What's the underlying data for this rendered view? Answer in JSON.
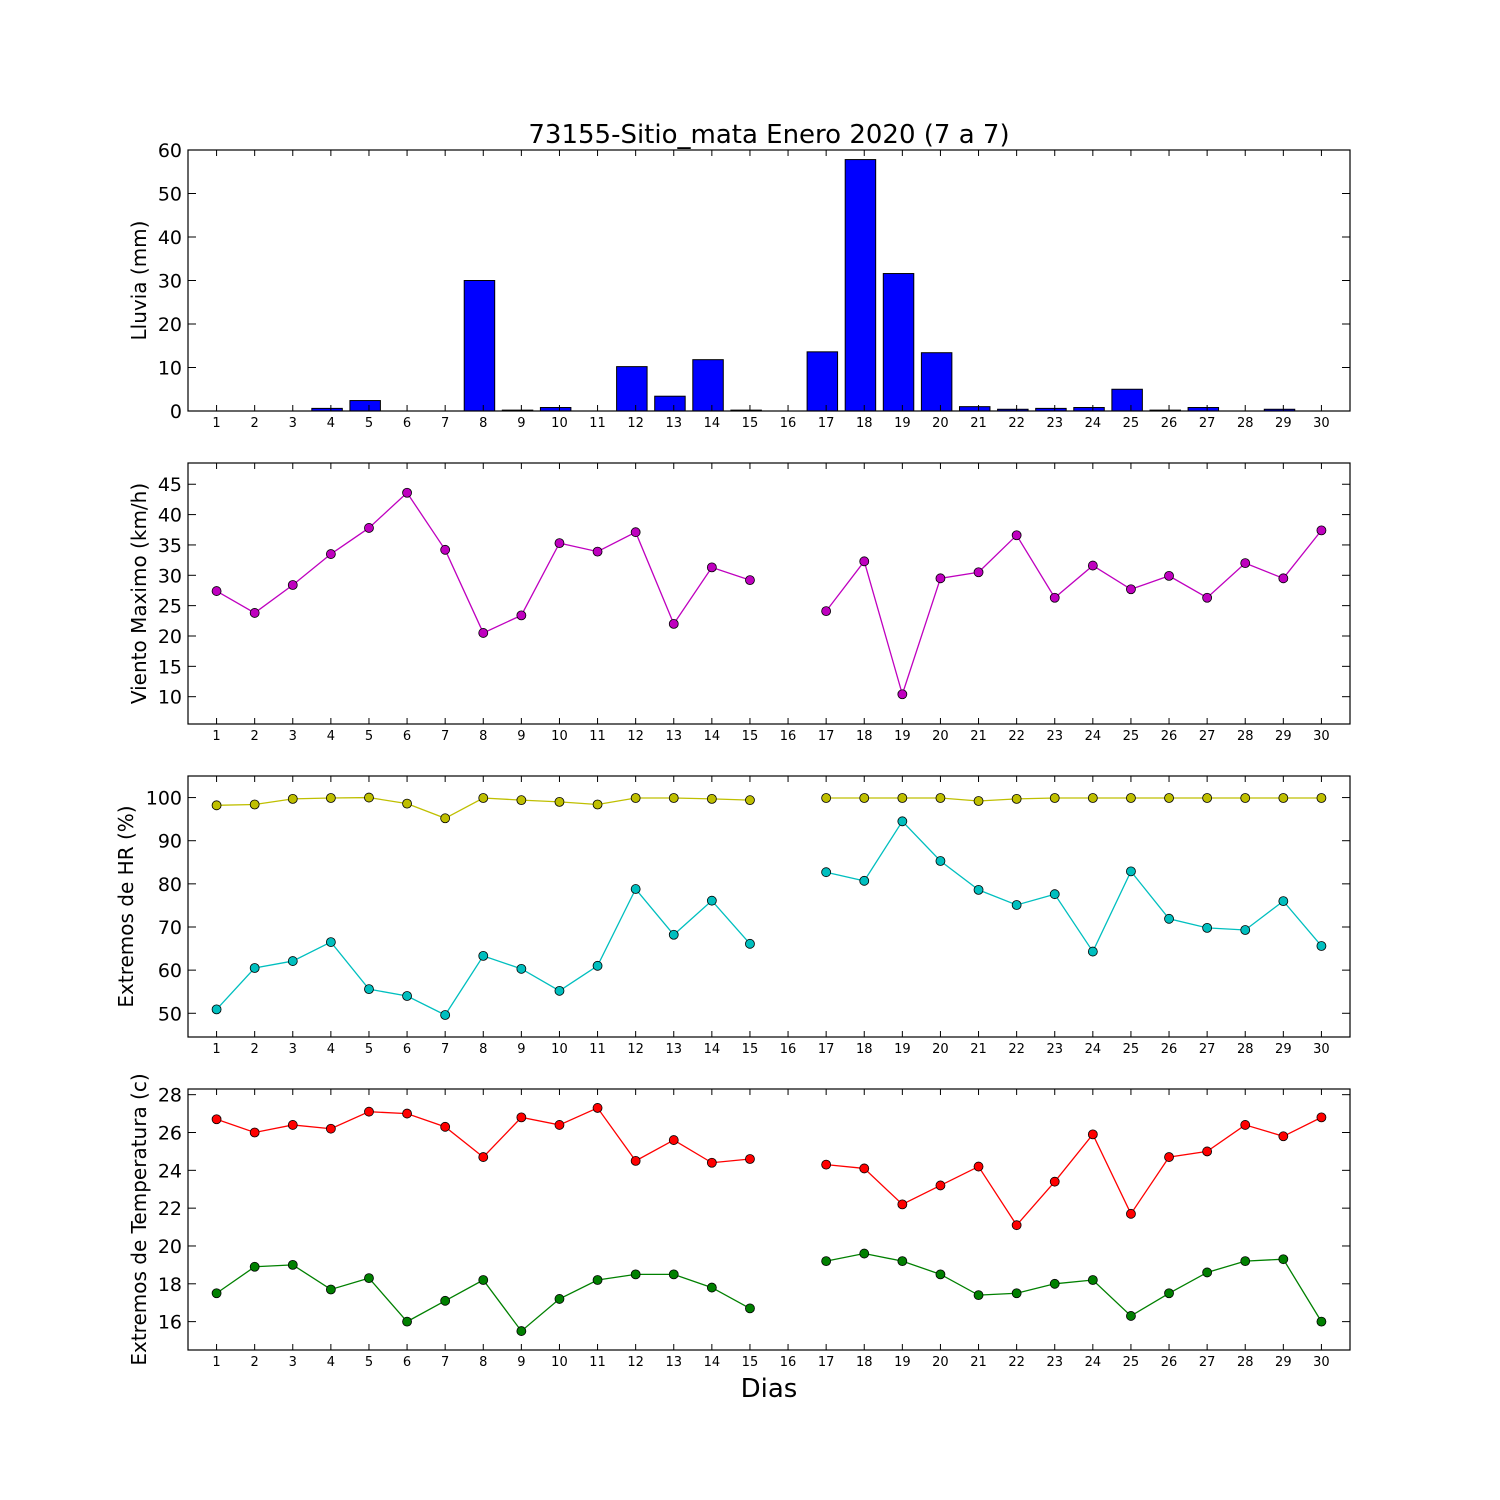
{
  "chart_data": [
    {
      "type": "bar",
      "title": "73155-Sitio_mata Enero 2020  (7 a 7)",
      "ylabel": "Lluvia (mm)",
      "xlabel": "",
      "ylim": [
        0,
        60
      ],
      "yticks": [
        0,
        10,
        20,
        30,
        40,
        50,
        60
      ],
      "categories": [
        "1",
        "2",
        "3",
        "4",
        "5",
        "6",
        "7",
        "8",
        "9",
        "10",
        "11",
        "12",
        "13",
        "14",
        "15",
        "16",
        "17",
        "18",
        "19",
        "20",
        "21",
        "22",
        "23",
        "24",
        "25",
        "26",
        "27",
        "28",
        "29",
        "30"
      ],
      "series": [
        {
          "color": "#0000ff",
          "values": [
            0,
            0,
            0,
            0.6,
            2.4,
            0,
            0,
            30.0,
            0.2,
            0.8,
            0,
            10.2,
            3.4,
            11.8,
            0.2,
            0,
            13.6,
            57.8,
            31.6,
            13.4,
            1.0,
            0.4,
            0.6,
            0.8,
            5.0,
            0.2,
            0.8,
            0,
            0.4,
            0
          ]
        }
      ]
    },
    {
      "type": "line",
      "ylabel": "Viento Maximo (km/h)",
      "xlabel": "",
      "ylim": [
        5.5,
        48.5
      ],
      "yticks": [
        10,
        15,
        20,
        25,
        30,
        35,
        40,
        45
      ],
      "x": [
        "1",
        "2",
        "3",
        "4",
        "5",
        "6",
        "7",
        "8",
        "9",
        "10",
        "11",
        "12",
        "13",
        "14",
        "15",
        "16",
        "17",
        "18",
        "19",
        "20",
        "21",
        "22",
        "23",
        "24",
        "25",
        "26",
        "27",
        "28",
        "29",
        "30"
      ],
      "series": [
        {
          "color": "#bf00bf",
          "values": [
            27.4,
            23.8,
            28.4,
            33.5,
            37.8,
            43.6,
            34.2,
            20.5,
            23.4,
            35.3,
            33.9,
            37.1,
            22.0,
            31.3,
            29.2,
            null,
            24.1,
            32.3,
            10.4,
            29.5,
            30.5,
            36.6,
            26.3,
            31.6,
            27.7,
            29.9,
            26.3,
            32.0,
            29.5,
            37.4
          ]
        }
      ]
    },
    {
      "type": "line",
      "ylabel": "Extremos de HR (%)",
      "xlabel": "",
      "ylim": [
        44.5,
        105
      ],
      "yticks": [
        50,
        60,
        70,
        80,
        90,
        100
      ],
      "x": [
        "1",
        "2",
        "3",
        "4",
        "5",
        "6",
        "7",
        "8",
        "9",
        "10",
        "11",
        "12",
        "13",
        "14",
        "15",
        "16",
        "17",
        "18",
        "19",
        "20",
        "21",
        "22",
        "23",
        "24",
        "25",
        "26",
        "27",
        "28",
        "29",
        "30"
      ],
      "series": [
        {
          "color": "#bfbf00",
          "values": [
            98.2,
            98.4,
            99.7,
            99.9,
            100.0,
            98.6,
            95.2,
            99.9,
            99.4,
            99.0,
            98.4,
            99.9,
            99.9,
            99.7,
            99.4,
            null,
            99.9,
            99.9,
            99.9,
            99.9,
            99.2,
            99.7,
            99.9,
            99.9,
            99.9,
            99.9,
            99.9,
            99.9,
            99.9,
            99.9
          ]
        },
        {
          "color": "#00bfbf",
          "values": [
            50.9,
            60.5,
            62.1,
            66.5,
            55.6,
            54.0,
            49.6,
            63.3,
            60.3,
            55.2,
            61.0,
            78.8,
            68.2,
            76.1,
            66.1,
            null,
            82.7,
            80.7,
            94.5,
            85.3,
            78.6,
            75.1,
            77.6,
            64.3,
            82.9,
            71.9,
            69.8,
            69.3,
            76.0,
            65.6
          ]
        }
      ]
    },
    {
      "type": "line",
      "ylabel": "Extremos de Temperatura (c)",
      "xlabel": "Dias",
      "ylim": [
        14.5,
        28.3
      ],
      "yticks": [
        16,
        18,
        20,
        22,
        24,
        26,
        28
      ],
      "x": [
        "1",
        "2",
        "3",
        "4",
        "5",
        "6",
        "7",
        "8",
        "9",
        "10",
        "11",
        "12",
        "13",
        "14",
        "15",
        "16",
        "17",
        "18",
        "19",
        "20",
        "21",
        "22",
        "23",
        "24",
        "25",
        "26",
        "27",
        "28",
        "29",
        "30"
      ],
      "series": [
        {
          "color": "#ff0000",
          "values": [
            26.7,
            26.0,
            26.4,
            26.2,
            27.1,
            27.0,
            26.3,
            24.7,
            26.8,
            26.4,
            27.3,
            24.5,
            25.6,
            24.4,
            24.6,
            null,
            24.3,
            24.1,
            22.2,
            23.2,
            24.2,
            21.1,
            23.4,
            25.9,
            21.7,
            24.7,
            25.0,
            26.4,
            25.8,
            26.8
          ]
        },
        {
          "color": "#008000",
          "values": [
            17.5,
            18.9,
            19.0,
            17.7,
            18.3,
            16.0,
            17.1,
            18.2,
            15.5,
            17.2,
            18.2,
            18.5,
            18.5,
            17.8,
            16.7,
            null,
            19.2,
            19.6,
            19.2,
            18.5,
            17.4,
            17.5,
            18.0,
            18.2,
            16.3,
            17.5,
            18.6,
            19.2,
            19.3,
            16.0
          ]
        }
      ]
    }
  ]
}
